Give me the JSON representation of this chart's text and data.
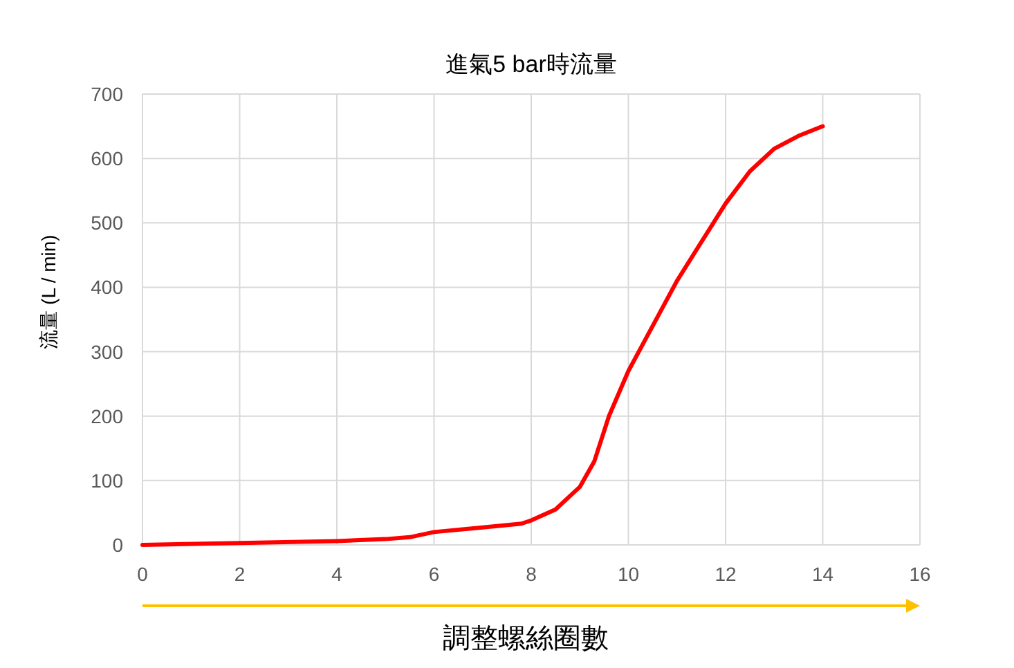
{
  "chart_data": {
    "type": "line",
    "title": "進氣5 bar時流量",
    "xlabel": "調整螺絲圈數",
    "ylabel": "流量 (L / min)",
    "x": [
      0,
      2,
      4,
      5,
      5.5,
      6,
      7,
      7.8,
      8,
      8.5,
      9,
      9.3,
      9.6,
      10,
      11,
      12,
      12.5,
      13,
      13.5,
      14
    ],
    "series": [
      {
        "color": "#ff0000",
        "values": [
          0,
          3,
          6,
          9,
          12,
          20,
          27,
          33,
          38,
          55,
          90,
          130,
          200,
          270,
          410,
          530,
          580,
          615,
          635,
          650
        ]
      }
    ],
    "xlim": [
      0,
      16
    ],
    "xticks": [
      0,
      2,
      4,
      6,
      8,
      10,
      12,
      14,
      16
    ],
    "ylim": [
      0,
      700
    ],
    "yticks": [
      0,
      100,
      200,
      300,
      400,
      500,
      600,
      700
    ],
    "grid": true,
    "marker": "none",
    "line_style": "solid"
  }
}
